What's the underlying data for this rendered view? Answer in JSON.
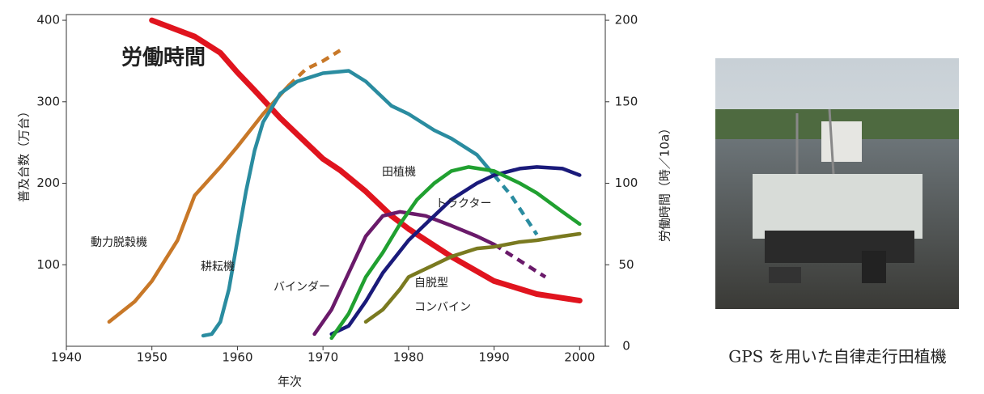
{
  "chart_data": {
    "type": "line",
    "x_label": "年次",
    "y_label": "普及台数（万台）",
    "y2_label": "労働時間（時／10a）",
    "xlim": [
      1940,
      2003
    ],
    "xticks": [
      1940,
      1950,
      1960,
      1970,
      1980,
      1990,
      2000
    ],
    "ylim": [
      0,
      407
    ],
    "yticks": [
      100,
      200,
      300,
      400
    ],
    "y2lim": [
      0,
      203.5
    ],
    "y2ticks": [
      0,
      50,
      100,
      150,
      200
    ],
    "series": [
      {
        "name": "労働時間",
        "color": "#e0141e",
        "axis": "y2",
        "x": [
          1950,
          1955,
          1958,
          1960,
          1962,
          1965,
          1967,
          1970,
          1972,
          1975,
          1978,
          1980,
          1985,
          1990,
          1995,
          2000
        ],
        "values": [
          200,
          190,
          180,
          168,
          157,
          140,
          130,
          115,
          108,
          95,
          80,
          72,
          55,
          40,
          32,
          28
        ]
      },
      {
        "name": "動力脱穀機",
        "color": "#c87828",
        "x": [
          1945,
          1948,
          1950,
          1953,
          1955,
          1958,
          1960,
          1963,
          1966
        ],
        "values": [
          30,
          55,
          80,
          130,
          185,
          220,
          245,
          285,
          320
        ],
        "projection_x": [
          1966,
          1968,
          1970,
          1972
        ],
        "projection_values": [
          320,
          340,
          350,
          363
        ]
      },
      {
        "name": "耕耘機",
        "color": "#2a8ca0",
        "x": [
          1956,
          1957,
          1958,
          1959,
          1960,
          1961,
          1962,
          1963,
          1965,
          1967,
          1970,
          1973,
          1975,
          1978,
          1980,
          1983,
          1985,
          1988,
          1990
        ],
        "values": [
          13,
          15,
          30,
          70,
          130,
          190,
          240,
          275,
          310,
          325,
          335,
          338,
          325,
          295,
          285,
          265,
          255,
          235,
          210
        ],
        "projection_x": [
          1990,
          1992,
          1995
        ],
        "projection_values": [
          210,
          185,
          137
        ]
      },
      {
        "name": "バインダー",
        "color": "#6a1a6a",
        "x": [
          1969,
          1971,
          1973,
          1975,
          1977,
          1979,
          1982,
          1985,
          1988,
          1990
        ],
        "values": [
          15,
          45,
          90,
          135,
          160,
          165,
          160,
          148,
          135,
          125
        ],
        "projection_x": [
          1990,
          1993,
          1996
        ],
        "projection_values": [
          125,
          105,
          85
        ]
      },
      {
        "name": "トラクター",
        "color": "#1a1a7a",
        "x": [
          1971,
          1973,
          1975,
          1977,
          1980,
          1983,
          1985,
          1988,
          1990,
          1993,
          1995,
          1998,
          2000
        ],
        "values": [
          15,
          25,
          55,
          90,
          130,
          160,
          180,
          200,
          210,
          218,
          220,
          218,
          210
        ]
      },
      {
        "name": "田植機",
        "color": "#20a030",
        "x": [
          1971,
          1973,
          1975,
          1977,
          1979,
          1981,
          1983,
          1985,
          1987,
          1990,
          1993,
          1995,
          1998,
          2000
        ],
        "values": [
          10,
          40,
          85,
          115,
          150,
          180,
          200,
          215,
          220,
          215,
          200,
          188,
          165,
          150
        ]
      },
      {
        "name": [
          "自脱型",
          "コンバイン"
        ],
        "color": "#7a7a20",
        "x": [
          1975,
          1977,
          1979,
          1980,
          1983,
          1985,
          1988,
          1990,
          1993,
          1995,
          1998,
          2000
        ],
        "values": [
          30,
          45,
          70,
          85,
          100,
          110,
          120,
          122,
          128,
          130,
          135,
          138
        ]
      }
    ]
  },
  "caption": "GPS を用いた自律走行田植機"
}
